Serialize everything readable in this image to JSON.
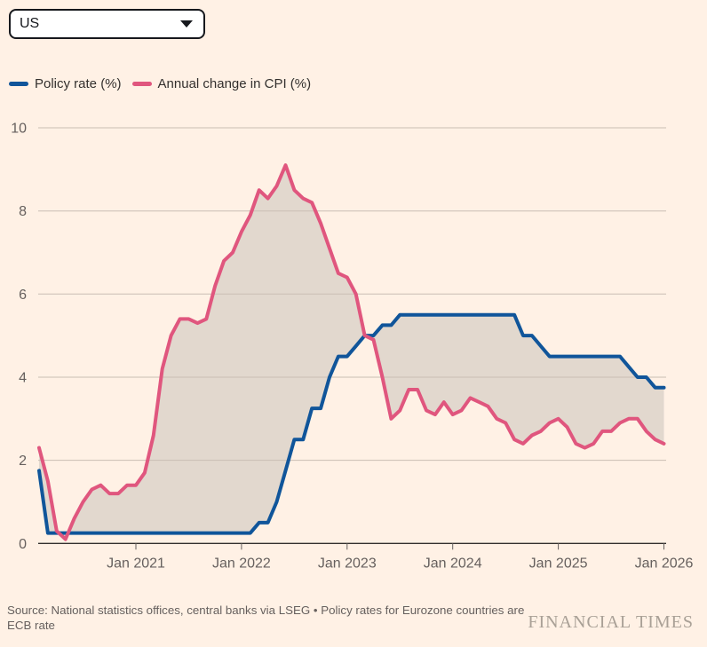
{
  "controls": {
    "region_selector": {
      "value": "US"
    }
  },
  "legend": [
    {
      "label": "Policy rate (%)",
      "color": "#10559a"
    },
    {
      "label": "Annual change in CPI (%)",
      "color": "#e0567e"
    }
  ],
  "chart_data": {
    "type": "line",
    "title": "",
    "frequency": "monthly",
    "x_start": "Feb 2020",
    "x_end": "Jan 2026",
    "x_tick_labels": [
      "Jan 2021",
      "Jan 2022",
      "Jan 2023",
      "Jan 2024",
      "Jan 2025",
      "Jan 2026"
    ],
    "x_tick_month_index": [
      11,
      23,
      35,
      47,
      59,
      71
    ],
    "y_ticks": [
      0,
      2,
      4,
      6,
      8,
      10
    ],
    "ylim": [
      0,
      10
    ],
    "grid": "horizontal",
    "legend_position": "top-left",
    "area_between_color": "#e2d8ce",
    "series": [
      {
        "name": "Policy rate (%)",
        "color": "#10559a",
        "values": [
          1.75,
          0.25,
          0.25,
          0.25,
          0.25,
          0.25,
          0.25,
          0.25,
          0.25,
          0.25,
          0.25,
          0.25,
          0.25,
          0.25,
          0.25,
          0.25,
          0.25,
          0.25,
          0.25,
          0.25,
          0.25,
          0.25,
          0.25,
          0.25,
          0.25,
          0.5,
          0.5,
          1.0,
          1.75,
          2.5,
          2.5,
          3.25,
          3.25,
          4.0,
          4.5,
          4.5,
          4.75,
          5.0,
          5.0,
          5.25,
          5.25,
          5.5,
          5.5,
          5.5,
          5.5,
          5.5,
          5.5,
          5.5,
          5.5,
          5.5,
          5.5,
          5.5,
          5.5,
          5.5,
          5.5,
          5.0,
          5.0,
          4.75,
          4.5,
          4.5,
          4.5,
          4.5,
          4.5,
          4.5,
          4.5,
          4.5,
          4.5,
          4.25,
          4.0,
          4.0,
          3.75,
          3.75
        ]
      },
      {
        "name": "Annual change in CPI (%)",
        "color": "#e0567e",
        "values": [
          2.3,
          1.5,
          0.3,
          0.1,
          0.6,
          1.0,
          1.3,
          1.4,
          1.2,
          1.2,
          1.4,
          1.4,
          1.7,
          2.6,
          4.2,
          5.0,
          5.4,
          5.4,
          5.3,
          5.4,
          6.2,
          6.8,
          7.0,
          7.5,
          7.9,
          8.5,
          8.3,
          8.6,
          9.1,
          8.5,
          8.3,
          8.2,
          7.7,
          7.1,
          6.5,
          6.4,
          6.0,
          5.0,
          4.9,
          4.0,
          3.0,
          3.2,
          3.7,
          3.7,
          3.2,
          3.1,
          3.4,
          3.1,
          3.2,
          3.5,
          3.4,
          3.3,
          3.0,
          2.9,
          2.5,
          2.4,
          2.6,
          2.7,
          2.9,
          3.0,
          2.8,
          2.4,
          2.3,
          2.4,
          2.7,
          2.7,
          2.9,
          3.0,
          3.0,
          2.7,
          2.5,
          2.4
        ]
      }
    ]
  },
  "theme": {
    "background": "#fff1e5",
    "grid_color": "#c9beb4",
    "axis_color": "#33302e",
    "tick_color": "#66605e",
    "label_color": "#66605e",
    "legend_text_color": "#33302e"
  },
  "footer": {
    "source_line1": "Source: National statistics offices, central banks via LSEG • Policy rates for Eurozone countries are",
    "source_line2": "ECB rate",
    "brand": "FINANCIAL TIMES"
  }
}
